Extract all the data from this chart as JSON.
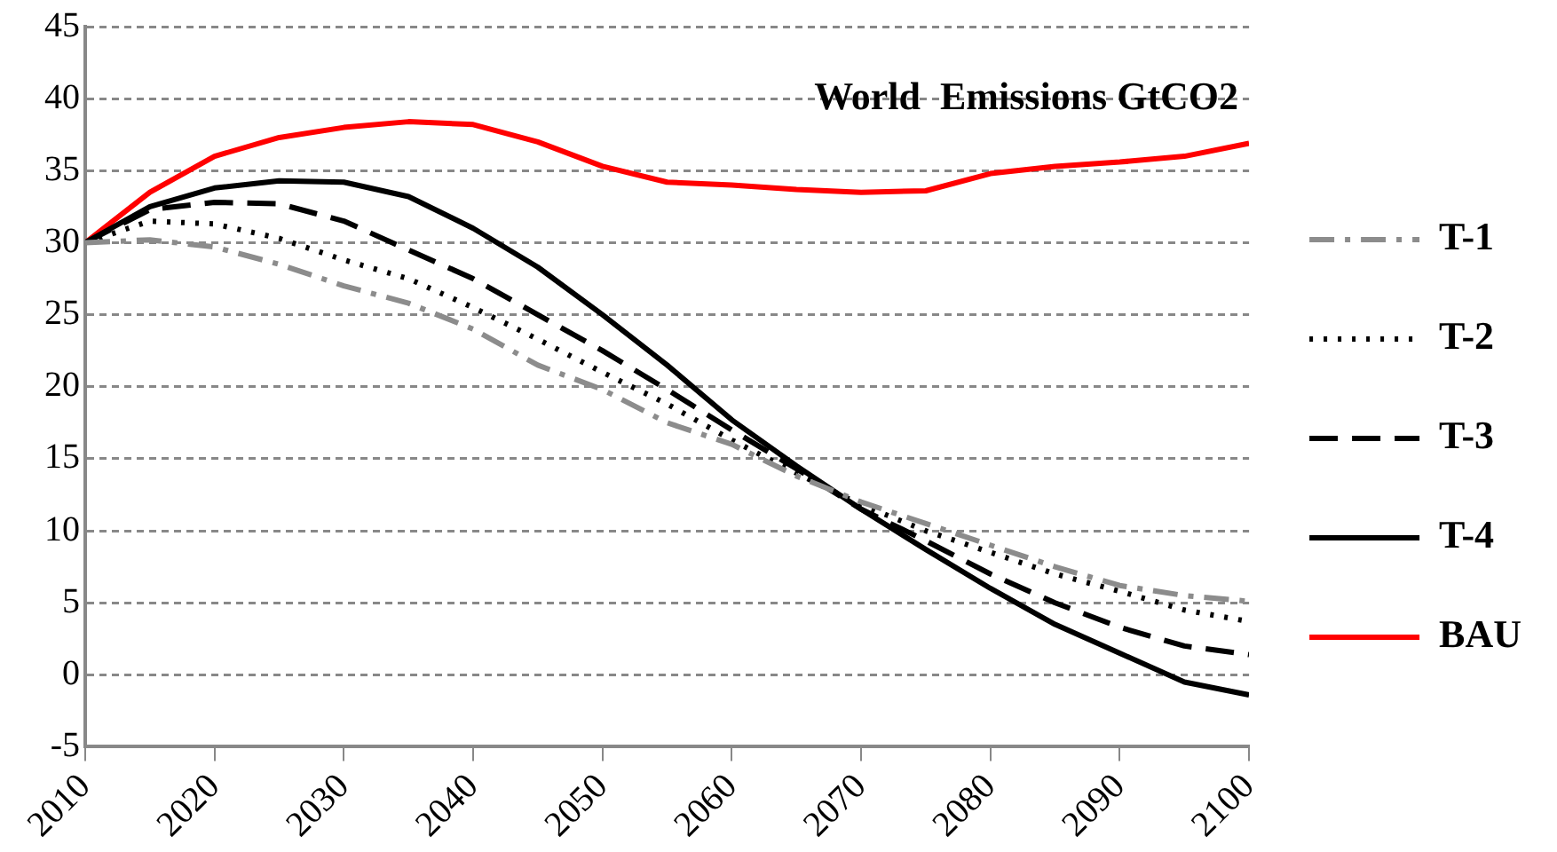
{
  "chart_data": {
    "type": "line",
    "title": "World  Emissions GtCO2",
    "x": [
      2010,
      2015,
      2020,
      2025,
      2030,
      2035,
      2040,
      2045,
      2050,
      2055,
      2060,
      2065,
      2070,
      2075,
      2080,
      2085,
      2090,
      2095,
      2100
    ],
    "xlim": [
      2010,
      2100
    ],
    "xticks": [
      2010,
      2020,
      2030,
      2040,
      2050,
      2060,
      2070,
      2080,
      2090,
      2100
    ],
    "ylim": [
      -5,
      45
    ],
    "yticks": [
      -5,
      0,
      5,
      10,
      15,
      20,
      25,
      30,
      35,
      40,
      45
    ],
    "grid": "y",
    "legend": "right",
    "marker": "none",
    "series": [
      {
        "name": "T-1",
        "color": "#8c8c8c",
        "line_style": "dashdot",
        "values": [
          30,
          30.2,
          29.7,
          28.5,
          27,
          25.8,
          24,
          21.5,
          19.8,
          17.5,
          16,
          13.8,
          12,
          10.5,
          9,
          7.5,
          6.2,
          5.5,
          5.1
        ]
      },
      {
        "name": "T-2",
        "color": "#000000",
        "line_style": "dotted",
        "values": [
          30,
          31.5,
          31.3,
          30.3,
          28.8,
          27.5,
          25.5,
          23.3,
          21,
          18.8,
          16.3,
          14,
          11.8,
          10,
          8.5,
          7,
          5.8,
          4.5,
          3.7
        ]
      },
      {
        "name": "T-3",
        "color": "#000000",
        "line_style": "dashed",
        "values": [
          30,
          32.3,
          32.8,
          32.7,
          31.5,
          29.5,
          27.5,
          25,
          22.5,
          19.8,
          17,
          14.3,
          11.5,
          9.3,
          7,
          5,
          3.3,
          2,
          1.4
        ]
      },
      {
        "name": "T-4",
        "color": "#000000",
        "line_style": "solid",
        "values": [
          30,
          32.5,
          33.8,
          34.3,
          34.2,
          33.2,
          31,
          28.3,
          25,
          21.5,
          17.7,
          14.5,
          11.5,
          8.7,
          6,
          3.5,
          1.5,
          -0.5,
          -1.4
        ]
      },
      {
        "name": "BAU",
        "color": "#ff0000",
        "line_style": "solid",
        "values": [
          30,
          33.5,
          36,
          37.3,
          38,
          38.4,
          38.2,
          37,
          35.3,
          34.2,
          34,
          33.7,
          33.5,
          33.6,
          34.8,
          35.3,
          35.6,
          36,
          36.9
        ]
      }
    ]
  }
}
